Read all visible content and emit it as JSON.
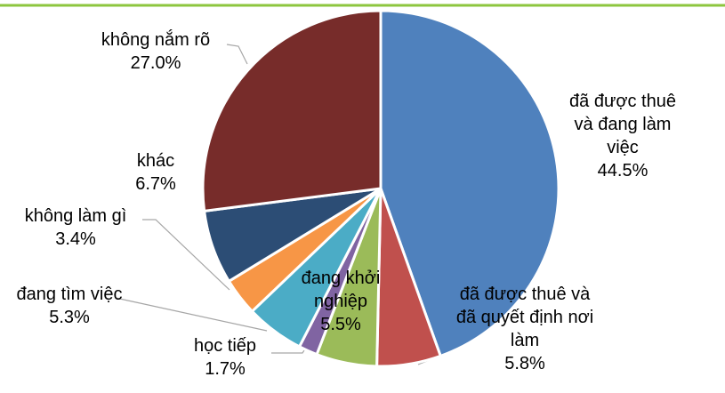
{
  "chart_data": {
    "type": "pie",
    "categories": [
      "đã được thuê và đang làm việc",
      "đã được thuê và đã quyết định nơi làm",
      "đang khởi nghiệp",
      "học tiếp",
      "đang tìm việc",
      "không làm gì",
      "khác",
      "không nắm rõ"
    ],
    "values": [
      44.5,
      5.8,
      5.5,
      1.7,
      5.3,
      3.4,
      6.7,
      27.0
    ],
    "value_labels": [
      "44.5%",
      "5.8%",
      "5.5%",
      "1.7%",
      "5.3%",
      "3.4%",
      "6.7%",
      "27.0%"
    ],
    "colors": [
      "#4f81bd",
      "#c0504d",
      "#9bbb59",
      "#8064a2",
      "#4bacc6",
      "#f79646",
      "#2c4d75",
      "#772c2a"
    ]
  }
}
